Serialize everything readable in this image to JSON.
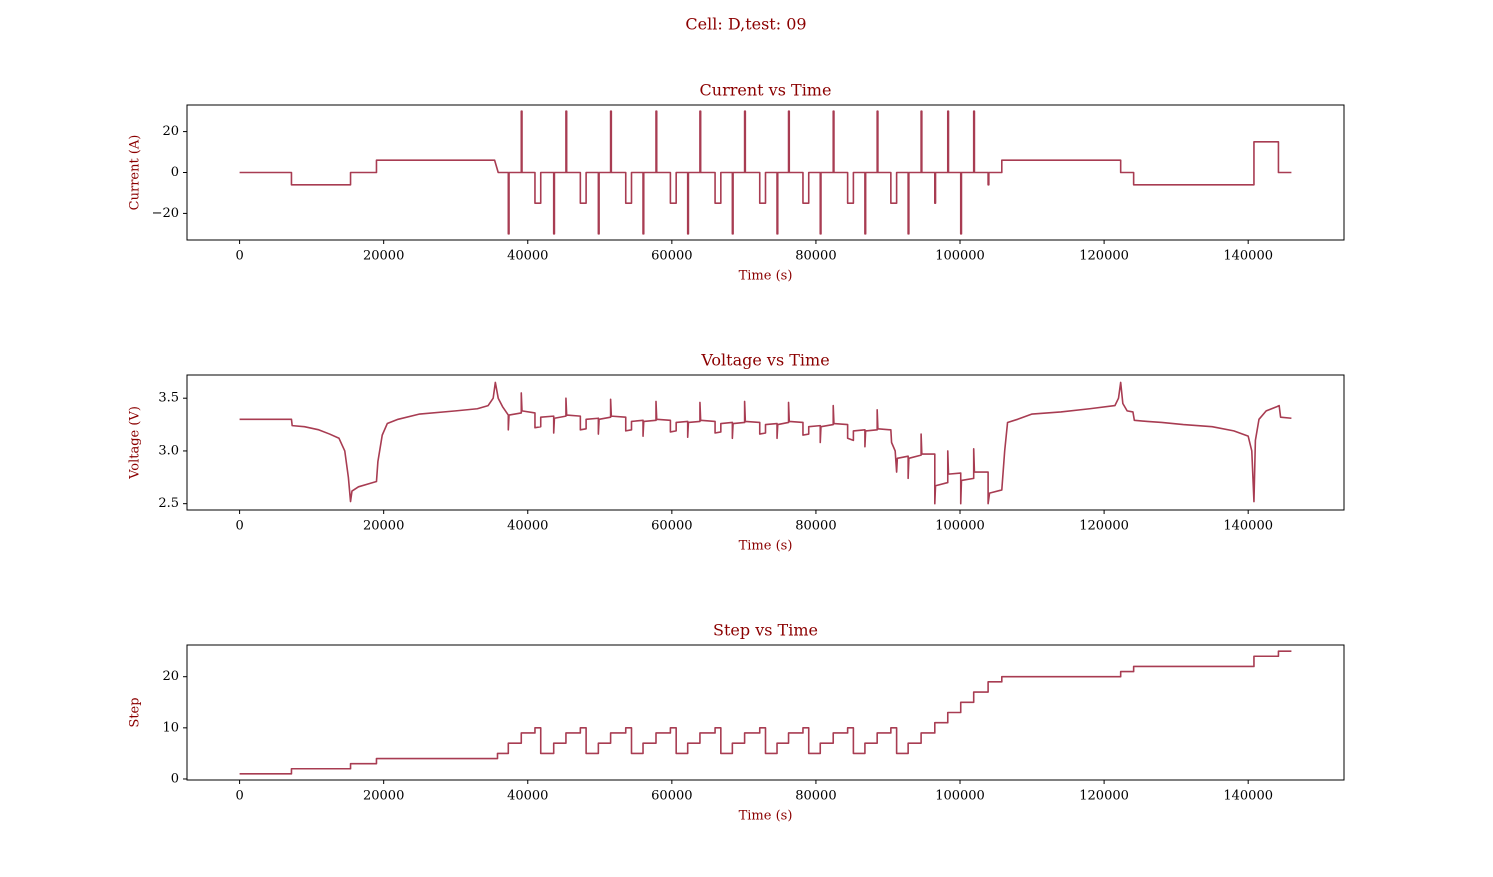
{
  "title": "Cell: D,test: 09",
  "chart_data": [
    {
      "type": "line",
      "title": "Current vs Time",
      "xlabel": "Time (s)",
      "ylabel": "Current (A)",
      "color": "#a83c52",
      "xlim": [
        -7300,
        153300
      ],
      "xticks": [
        0,
        20000,
        40000,
        60000,
        80000,
        100000,
        120000,
        140000
      ],
      "ylim": [
        -33,
        33
      ],
      "yticks": [
        {
          "value": -20,
          "label": "−20"
        },
        0,
        20
      ],
      "x": [
        0,
        7200,
        7200,
        15400,
        15400,
        19000,
        19000,
        35400,
        35900,
        37300,
        37300,
        37400,
        37400,
        39100,
        39100,
        39200,
        39200,
        41000,
        41000,
        41800,
        41800,
        43600,
        43600,
        43700,
        43700,
        45300,
        45300,
        45400,
        45400,
        47300,
        47300,
        48100,
        48100,
        49800,
        49800,
        49900,
        49900,
        51500,
        51500,
        51600,
        51600,
        53600,
        53600,
        54400,
        54400,
        56000,
        56000,
        56100,
        56100,
        57800,
        57800,
        57900,
        57900,
        59800,
        59800,
        60600,
        60600,
        62200,
        62200,
        62300,
        62300,
        63900,
        63900,
        64000,
        64000,
        66000,
        66000,
        66800,
        66800,
        68400,
        68400,
        68500,
        68500,
        70100,
        70100,
        70200,
        70200,
        72200,
        72200,
        73000,
        73000,
        74600,
        74600,
        74700,
        74700,
        76200,
        76200,
        76300,
        76300,
        78200,
        78200,
        79000,
        79000,
        80600,
        80600,
        80700,
        80700,
        82400,
        82400,
        82500,
        82500,
        84400,
        84400,
        85200,
        85200,
        86800,
        86800,
        86900,
        86900,
        88500,
        88500,
        88600,
        88600,
        90400,
        90400,
        91200,
        91200,
        92800,
        92800,
        92900,
        92900,
        94600,
        94600,
        94700,
        94700,
        96500,
        96500,
        96600,
        96600,
        98300,
        98300,
        98400,
        98400,
        100100,
        100100,
        100200,
        100200,
        101900,
        101900,
        102000,
        102000,
        103900,
        103900,
        104000,
        104000,
        105800,
        105800,
        122300,
        122300,
        124100,
        124100,
        140800,
        140800,
        144200,
        144200,
        146000
      ],
      "values": [
        0,
        0,
        -6,
        -6,
        0,
        0,
        6,
        6,
        0,
        0,
        -30,
        -30,
        0,
        0,
        30,
        30,
        0,
        0,
        -15,
        -15,
        0,
        0,
        -30,
        -30,
        0,
        0,
        30,
        30,
        0,
        0,
        -15,
        -15,
        0,
        0,
        -30,
        -30,
        0,
        0,
        30,
        30,
        0,
        0,
        -15,
        -15,
        0,
        0,
        -30,
        -30,
        0,
        0,
        30,
        30,
        0,
        0,
        -15,
        -15,
        0,
        0,
        -30,
        -30,
        0,
        0,
        30,
        30,
        0,
        0,
        -15,
        -15,
        0,
        0,
        -30,
        -30,
        0,
        0,
        30,
        30,
        0,
        0,
        -15,
        -15,
        0,
        0,
        -30,
        -30,
        0,
        0,
        30,
        30,
        0,
        0,
        -15,
        -15,
        0,
        0,
        -30,
        -30,
        0,
        0,
        30,
        30,
        0,
        0,
        -15,
        -15,
        0,
        0,
        -30,
        -30,
        0,
        0,
        30,
        30,
        0,
        0,
        -15,
        -15,
        0,
        0,
        -30,
        -30,
        0,
        0,
        30,
        30,
        0,
        0,
        -15,
        -15,
        0,
        0,
        30,
        30,
        0,
        0,
        -30,
        -30,
        0,
        0,
        30,
        30,
        0,
        0,
        -6,
        -6,
        0,
        0,
        6,
        6,
        0,
        0,
        -6,
        -6,
        15,
        15,
        0,
        0
      ]
    },
    {
      "type": "line",
      "title": "Voltage vs Time",
      "xlabel": "Time (s)",
      "ylabel": "Voltage (V)",
      "color": "#a83c52",
      "xlim": [
        -7300,
        153300
      ],
      "xticks": [
        0,
        20000,
        40000,
        60000,
        80000,
        100000,
        120000,
        140000
      ],
      "ylim": [
        2.44,
        3.72
      ],
      "yticks": [
        2.5,
        {
          "value": 3,
          "label": "3.0"
        },
        3.5
      ],
      "x": [
        0,
        7200,
        7300,
        9000,
        11000,
        12500,
        13800,
        14600,
        15100,
        15400,
        15600,
        16500,
        18000,
        19000,
        19200,
        19800,
        20500,
        22000,
        25000,
        30000,
        33000,
        34500,
        35200,
        35500,
        35900,
        36500,
        37300,
        37300,
        37400,
        39100,
        39100,
        39200,
        41000,
        41000,
        41800,
        41800,
        43600,
        43600,
        43700,
        45300,
        45300,
        45400,
        47300,
        47300,
        48100,
        48100,
        49800,
        49800,
        49900,
        51500,
        51500,
        51600,
        53600,
        53600,
        54400,
        54400,
        56000,
        56000,
        56100,
        57800,
        57800,
        57900,
        59800,
        59800,
        60600,
        60600,
        62200,
        62200,
        62300,
        63900,
        63900,
        64000,
        66000,
        66000,
        66800,
        66800,
        68400,
        68400,
        68500,
        70100,
        70100,
        70200,
        72200,
        72200,
        73000,
        73000,
        74600,
        74600,
        74700,
        76200,
        76200,
        76300,
        78200,
        78200,
        79000,
        79000,
        80600,
        80600,
        80700,
        82400,
        82400,
        82500,
        84400,
        84400,
        85200,
        85200,
        86800,
        86800,
        86900,
        88500,
        88500,
        88600,
        90400,
        90500,
        91000,
        91200,
        91300,
        92800,
        92800,
        92900,
        94600,
        94600,
        94700,
        96500,
        96500,
        96600,
        98300,
        98300,
        98400,
        100100,
        100100,
        100200,
        101900,
        101900,
        102000,
        103900,
        103900,
        104100,
        105800,
        106200,
        106600,
        108000,
        110000,
        114000,
        118000,
        121500,
        122000,
        122300,
        122600,
        123200,
        124000,
        124200,
        126000,
        128000,
        131000,
        135000,
        138000,
        140000,
        140500,
        140800,
        141000,
        141500,
        142500,
        144000,
        144300,
        144500,
        146000
      ],
      "values": [
        3.3,
        3.3,
        3.24,
        3.23,
        3.2,
        3.16,
        3.12,
        3.0,
        2.75,
        2.52,
        2.62,
        2.66,
        2.69,
        2.71,
        2.9,
        3.15,
        3.26,
        3.3,
        3.35,
        3.38,
        3.4,
        3.43,
        3.5,
        3.65,
        3.5,
        3.42,
        3.34,
        3.2,
        3.34,
        3.36,
        3.55,
        3.38,
        3.36,
        3.22,
        3.23,
        3.32,
        3.33,
        3.17,
        3.31,
        3.33,
        3.5,
        3.34,
        3.33,
        3.2,
        3.21,
        3.3,
        3.31,
        3.16,
        3.3,
        3.32,
        3.49,
        3.33,
        3.32,
        3.19,
        3.2,
        3.28,
        3.29,
        3.14,
        3.28,
        3.29,
        3.47,
        3.3,
        3.29,
        3.18,
        3.19,
        3.27,
        3.28,
        3.13,
        3.27,
        3.28,
        3.46,
        3.29,
        3.28,
        3.17,
        3.18,
        3.26,
        3.27,
        3.12,
        3.26,
        3.27,
        3.47,
        3.28,
        3.27,
        3.16,
        3.17,
        3.25,
        3.26,
        3.12,
        3.25,
        3.27,
        3.46,
        3.28,
        3.27,
        3.15,
        3.16,
        3.23,
        3.24,
        3.08,
        3.23,
        3.25,
        3.43,
        3.26,
        3.25,
        3.12,
        3.1,
        3.19,
        3.2,
        3.04,
        3.19,
        3.2,
        3.39,
        3.21,
        3.2,
        3.08,
        3.0,
        2.8,
        2.93,
        2.95,
        2.74,
        2.93,
        2.96,
        3.16,
        2.97,
        2.97,
        2.5,
        2.67,
        2.7,
        3.0,
        2.78,
        2.79,
        2.5,
        2.72,
        2.74,
        3.02,
        2.8,
        2.8,
        2.5,
        2.6,
        2.63,
        3.0,
        3.27,
        3.3,
        3.35,
        3.37,
        3.4,
        3.43,
        3.5,
        3.65,
        3.45,
        3.38,
        3.37,
        3.29,
        3.28,
        3.27,
        3.25,
        3.23,
        3.19,
        3.14,
        3.0,
        2.52,
        3.1,
        3.3,
        3.38,
        3.42,
        3.43,
        3.32,
        3.31
      ]
    },
    {
      "type": "line",
      "title": "Step vs Time",
      "xlabel": "Time (s)",
      "ylabel": "Step",
      "color": "#a83c52",
      "xlim": [
        -7300,
        153300
      ],
      "xticks": [
        0,
        20000,
        40000,
        60000,
        80000,
        100000,
        120000,
        140000
      ],
      "ylim": [
        -0.2,
        26.2
      ],
      "yticks": [
        0,
        10,
        20
      ],
      "x": [
        0,
        7200,
        7200,
        15400,
        15400,
        19000,
        19000,
        35800,
        35800,
        37300,
        37300,
        39100,
        39100,
        41000,
        41000,
        41800,
        41800,
        43600,
        43600,
        45300,
        45300,
        47300,
        47300,
        48100,
        48100,
        49800,
        49800,
        51500,
        51500,
        53600,
        53600,
        54400,
        54400,
        56000,
        56000,
        57800,
        57800,
        59800,
        59800,
        60600,
        60600,
        62200,
        62200,
        63900,
        63900,
        66000,
        66000,
        66800,
        66800,
        68400,
        68400,
        70100,
        70100,
        72200,
        72200,
        73000,
        73000,
        74600,
        74600,
        76200,
        76200,
        78200,
        78200,
        79000,
        79000,
        80600,
        80600,
        82400,
        82400,
        84400,
        84400,
        85200,
        85200,
        86800,
        86800,
        88500,
        88500,
        90400,
        90400,
        91200,
        91200,
        92800,
        92800,
        94600,
        94600,
        96500,
        96500,
        98300,
        98300,
        100100,
        100100,
        101900,
        101900,
        103900,
        103900,
        105800,
        105800,
        122300,
        122300,
        124100,
        124100,
        140800,
        140800,
        144200,
        144200,
        146000
      ],
      "values": [
        1,
        1,
        2,
        2,
        3,
        3,
        4,
        4,
        5,
        5,
        7,
        7,
        9,
        9,
        10,
        10,
        5,
        5,
        7,
        7,
        9,
        9,
        10,
        10,
        5,
        5,
        7,
        7,
        9,
        9,
        10,
        10,
        5,
        5,
        7,
        7,
        9,
        9,
        10,
        10,
        5,
        5,
        7,
        7,
        9,
        9,
        10,
        10,
        5,
        5,
        7,
        7,
        9,
        9,
        10,
        10,
        5,
        5,
        7,
        7,
        9,
        9,
        10,
        10,
        5,
        5,
        7,
        7,
        9,
        9,
        10,
        10,
        5,
        5,
        7,
        7,
        9,
        9,
        10,
        10,
        5,
        5,
        7,
        7,
        9,
        9,
        11,
        11,
        13,
        13,
        15,
        15,
        17,
        17,
        19,
        19,
        20,
        20,
        21,
        21,
        22,
        22,
        24,
        24,
        25,
        25
      ]
    }
  ]
}
